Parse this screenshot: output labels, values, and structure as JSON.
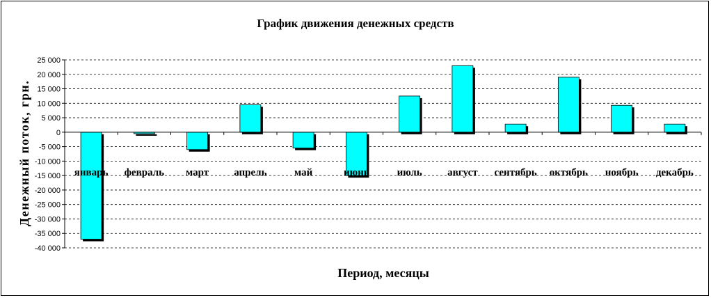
{
  "chart_data": {
    "type": "bar",
    "title": "График движения денежных средств",
    "xlabel": "Период, месяцы",
    "ylabel": "Денежный поток, грн.",
    "categories": [
      "январь",
      "февраль",
      "март",
      "апрель",
      "май",
      "июнь",
      "июль",
      "август",
      "сентябрь",
      "октябрь",
      "ноябрь",
      "декабрь"
    ],
    "values": [
      -37000,
      -500,
      -6000,
      9500,
      -5500,
      -15000,
      12500,
      23000,
      2800,
      19000,
      9300,
      2800
    ],
    "ylim": [
      -40000,
      25000
    ],
    "yticks": [
      25000,
      20000,
      15000,
      10000,
      5000,
      0,
      -5000,
      -10000,
      -15000,
      -20000,
      -25000,
      -30000,
      -35000,
      -40000
    ],
    "ytick_labels": [
      "25 000",
      "20 000",
      "15 000",
      "10 000",
      "5 000",
      "0",
      "-5 000",
      "-10 000",
      "-15 000",
      "-20 000",
      "-25 000",
      "-30 000",
      "-35 000",
      "-40 000"
    ],
    "grid": true,
    "legend": "none",
    "colors": {
      "bar": "#00ffff",
      "bar_outline": "#000000",
      "shadow": "#000000",
      "grid": "#000000"
    }
  }
}
